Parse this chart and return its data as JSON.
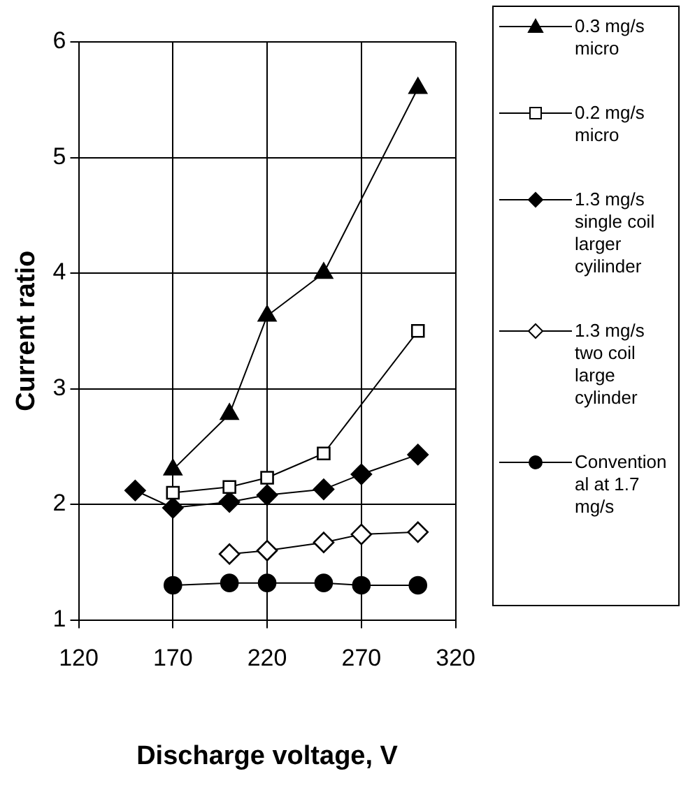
{
  "chart_data": {
    "type": "line",
    "xlabel": "Discharge voltage, V",
    "ylabel": "Current ratio",
    "xlim": [
      120,
      320
    ],
    "xticks": [
      120,
      170,
      220,
      270,
      320
    ],
    "ylim": [
      1,
      6
    ],
    "yticks": [
      1,
      2,
      3,
      4,
      5,
      6
    ],
    "grid": true,
    "legend": "right",
    "line_style": "solid",
    "series": [
      {
        "name": "0.3 mg/s micro",
        "color": "#000000",
        "marker": "triangle",
        "x": [
          170,
          200,
          220,
          250,
          300
        ],
        "values": [
          2.3,
          2.78,
          3.63,
          4.0,
          5.6
        ]
      },
      {
        "name": "0.2 mg/s micro",
        "color": "#000000",
        "colors": [
          "#ffffff",
          "#ffffff",
          "#ffffff",
          "#ffffff",
          "#ffffff"
        ],
        "marker": "square",
        "x": [
          170,
          200,
          220,
          250,
          300
        ],
        "values": [
          2.1,
          2.15,
          2.23,
          2.44,
          3.5
        ]
      },
      {
        "name": "1.3 mg/s single coil larger cyilinder",
        "color": "#000000",
        "marker": "diamond",
        "x": [
          150,
          170,
          200,
          220,
          250,
          270,
          300
        ],
        "values": [
          2.12,
          1.97,
          2.02,
          2.08,
          2.13,
          2.26,
          2.43
        ]
      },
      {
        "name": "1.3 mg/s two coil large cylinder",
        "color": "#000000",
        "colors": [
          "#ffffff",
          "#ffffff",
          "#ffffff",
          "#ffffff",
          "#ffffff"
        ],
        "marker": "diamond",
        "x": [
          200,
          220,
          250,
          270,
          300
        ],
        "values": [
          1.57,
          1.6,
          1.67,
          1.74,
          1.76
        ]
      },
      {
        "name": "Conventional at 1.7 mg/s",
        "color": "#000000",
        "marker": "circle",
        "x": [
          170,
          200,
          220,
          250,
          270,
          300
        ],
        "values": [
          1.3,
          1.32,
          1.32,
          1.32,
          1.3,
          1.3
        ]
      }
    ]
  }
}
